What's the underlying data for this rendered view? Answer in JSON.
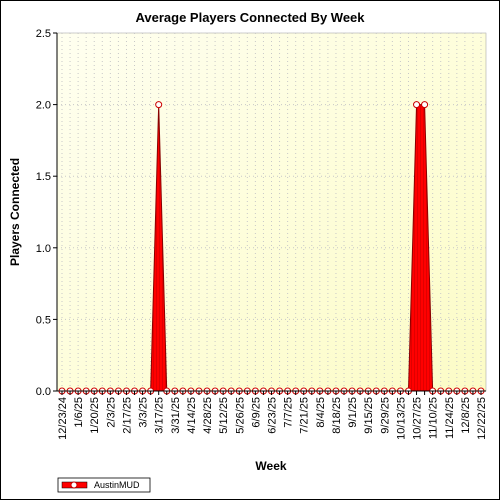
{
  "chart_data": {
    "type": "area",
    "title": "Average Players Connected By Week",
    "xlabel": "Week",
    "ylabel": "Players Connected",
    "ylim": [
      0,
      2.5
    ],
    "yticks": [
      "0.0",
      "0.5",
      "1.0",
      "1.5",
      "2.0",
      "2.5"
    ],
    "x_tick_labels": [
      "12/23/24",
      "1/6/25",
      "1/20/25",
      "2/3/25",
      "2/17/25",
      "3/3/25",
      "3/17/25",
      "3/31/25",
      "4/14/25",
      "4/28/25",
      "5/12/25",
      "5/26/25",
      "6/9/25",
      "6/23/25",
      "7/7/25",
      "7/21/25",
      "8/4/25",
      "8/18/25",
      "9/1/25",
      "9/15/25",
      "9/29/25",
      "10/13/25",
      "10/27/25",
      "11/10/25",
      "11/24/25",
      "12/8/25",
      "12/22/25"
    ],
    "x": [
      "12/23/24",
      "12/30/24",
      "1/6/25",
      "1/13/25",
      "1/20/25",
      "1/27/25",
      "2/3/25",
      "2/10/25",
      "2/17/25",
      "2/24/25",
      "3/3/25",
      "3/10/25",
      "3/17/25",
      "3/24/25",
      "3/31/25",
      "4/7/25",
      "4/14/25",
      "4/21/25",
      "4/28/25",
      "5/5/25",
      "5/12/25",
      "5/19/25",
      "5/26/25",
      "6/2/25",
      "6/9/25",
      "6/16/25",
      "6/23/25",
      "6/30/25",
      "7/7/25",
      "7/14/25",
      "7/21/25",
      "7/28/25",
      "8/4/25",
      "8/11/25",
      "8/18/25",
      "8/25/25",
      "9/1/25",
      "9/8/25",
      "9/15/25",
      "9/22/25",
      "9/29/25",
      "10/6/25",
      "10/13/25",
      "10/20/25",
      "10/27/25",
      "11/3/25",
      "11/10/25",
      "11/17/25",
      "11/24/25",
      "12/1/25",
      "12/8/25",
      "12/15/25",
      "12/22/25"
    ],
    "series": [
      {
        "name": "AustinMUD",
        "color": "#ff0000",
        "values": [
          0,
          0,
          0,
          0,
          0,
          0,
          0,
          0,
          0,
          0,
          0,
          0,
          2,
          0,
          0,
          0,
          0,
          0,
          0,
          0,
          0,
          0,
          0,
          0,
          0,
          0,
          0,
          0,
          0,
          0,
          0,
          0,
          0,
          0,
          0,
          0,
          0,
          0,
          0,
          0,
          0,
          0,
          0,
          0,
          2,
          2,
          0,
          0,
          0,
          0,
          0,
          0,
          0
        ]
      }
    ],
    "grid": true,
    "legend_position": "bottom-left",
    "plot_background": [
      "#fffff0",
      "#fcfcc6"
    ]
  }
}
